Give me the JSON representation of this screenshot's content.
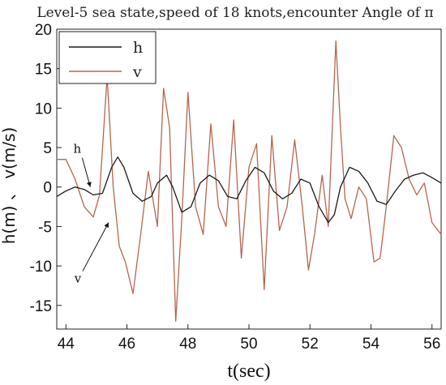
{
  "chart_data": {
    "type": "line",
    "title": "Level-5 sea state,speed of 18 knots,encounter Angle of π",
    "xlabel": "t(sec)",
    "ylabel": "h(m) 、 v(m/s)",
    "xlim": [
      43.7,
      56.3
    ],
    "ylim": [
      -18,
      20
    ],
    "xticks": [
      44,
      46,
      48,
      50,
      52,
      54,
      56
    ],
    "yticks": [
      -15,
      -10,
      -5,
      0,
      5,
      10,
      15,
      20
    ],
    "grid": false,
    "legend_position": "top-left",
    "series": [
      {
        "name": "h",
        "color": "#1a1a1a",
        "x": [
          43.7,
          44.0,
          44.3,
          44.6,
          44.9,
          45.2,
          45.5,
          45.7,
          45.9,
          46.2,
          46.5,
          46.8,
          47.0,
          47.3,
          47.5,
          47.8,
          48.1,
          48.4,
          48.7,
          49.0,
          49.3,
          49.6,
          49.9,
          50.2,
          50.5,
          50.8,
          51.1,
          51.4,
          51.7,
          52.0,
          52.3,
          52.6,
          52.8,
          53.0,
          53.3,
          53.6,
          53.9,
          54.2,
          54.5,
          54.8,
          55.1,
          55.4,
          55.7,
          56.0,
          56.3
        ],
        "values": [
          -1.2,
          -0.5,
          0.0,
          -0.3,
          -1.0,
          -0.8,
          2.5,
          3.8,
          2.5,
          -0.8,
          -1.8,
          -1.2,
          0.5,
          1.5,
          0.0,
          -3.2,
          -2.5,
          0.5,
          1.5,
          0.8,
          -1.2,
          -1.5,
          0.8,
          2.5,
          1.8,
          -0.5,
          -1.5,
          -0.8,
          1.0,
          0.5,
          -2.5,
          -4.5,
          -3.5,
          0.0,
          2.5,
          2.0,
          0.5,
          -1.8,
          -2.2,
          -0.5,
          1.0,
          1.5,
          1.8,
          1.2,
          0.5
        ]
      },
      {
        "name": "v",
        "color": "#b5654e",
        "x": [
          43.7,
          44.0,
          44.3,
          44.6,
          44.9,
          45.1,
          45.35,
          45.55,
          45.75,
          45.95,
          46.2,
          46.45,
          46.7,
          47.0,
          47.2,
          47.4,
          47.6,
          47.8,
          48.0,
          48.25,
          48.5,
          48.75,
          49.0,
          49.25,
          49.5,
          49.75,
          50.0,
          50.25,
          50.5,
          50.75,
          51.0,
          51.25,
          51.5,
          51.75,
          51.95,
          52.15,
          52.4,
          52.6,
          52.85,
          53.0,
          53.15,
          53.35,
          53.6,
          53.85,
          54.1,
          54.3,
          54.5,
          54.75,
          55.0,
          55.25,
          55.5,
          55.75,
          56.0,
          56.3
        ],
        "values": [
          3.5,
          3.5,
          1.0,
          -2.5,
          -3.8,
          -1.0,
          14.0,
          0.0,
          -7.5,
          -9.5,
          -13.5,
          -6.0,
          2.0,
          -5.0,
          12.5,
          7.5,
          -17.0,
          -4.0,
          12.0,
          -2.5,
          -6.0,
          8.0,
          -2.5,
          -5.0,
          8.5,
          -9.0,
          2.5,
          5.5,
          -13.0,
          6.5,
          -5.5,
          -2.5,
          6.0,
          -2.5,
          -10.5,
          -6.0,
          1.5,
          -5.0,
          18.5,
          7.5,
          -1.5,
          -4.0,
          0.0,
          -1.5,
          -9.5,
          -9.0,
          -2.5,
          6.5,
          5.0,
          1.0,
          -1.0,
          0.5,
          -4.5,
          -6.0
        ]
      }
    ],
    "annotations": [
      {
        "text": "h",
        "target": [
          44.8,
          0.0
        ]
      },
      {
        "text": "v",
        "target": [
          45.4,
          -4.5
        ]
      }
    ]
  }
}
